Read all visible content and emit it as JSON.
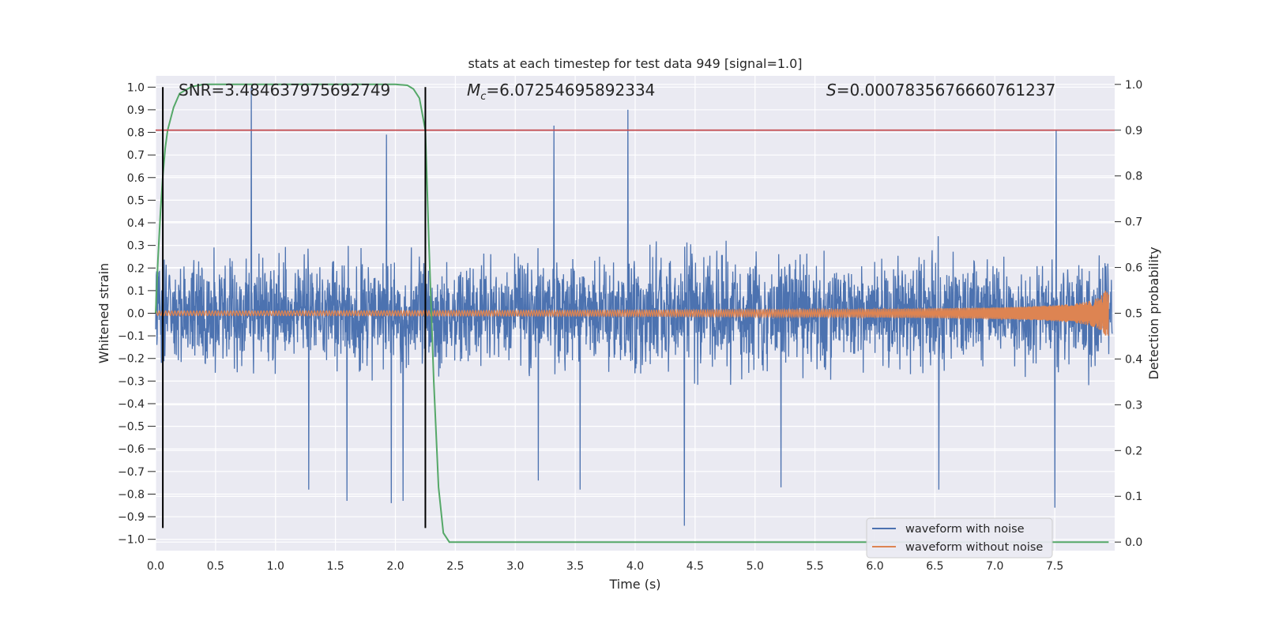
{
  "chart_data": {
    "type": "line",
    "title": "stats at each timestep for test data 949 [signal=1.0]",
    "xlabel": "Time (s)",
    "ylabel": "Whitened strain",
    "y2label": "Detection probability",
    "xlim": [
      0.0,
      8.0
    ],
    "ylim": [
      -1.05,
      1.05
    ],
    "y2lim": [
      -0.0187,
      1.0187
    ],
    "xticks": [
      0.0,
      0.5,
      1.0,
      1.5,
      2.0,
      2.5,
      3.0,
      3.5,
      4.0,
      4.5,
      5.0,
      5.5,
      6.0,
      6.5,
      7.0,
      7.5
    ],
    "xtick_labels": [
      "0.0",
      "0.5",
      "1.0",
      "1.5",
      "2.0",
      "2.5",
      "3.0",
      "3.5",
      "4.0",
      "4.5",
      "5.0",
      "5.5",
      "6.0",
      "6.5",
      "7.0",
      "7.5"
    ],
    "yticks": [
      1.0,
      0.9,
      0.8,
      0.7,
      0.6,
      0.5,
      0.4,
      0.3,
      0.2,
      0.1,
      0.0,
      -0.1,
      -0.2,
      -0.3,
      -0.4,
      -0.5,
      -0.6,
      -0.7,
      -0.8,
      -0.9,
      -1.0
    ],
    "ytick_labels": [
      "1.0",
      "0.9",
      "0.8",
      "0.7",
      "0.6",
      "0.5",
      "0.4",
      "0.3",
      "0.2",
      "0.1",
      "0.0",
      "−0.1",
      "−0.2",
      "−0.3",
      "−0.4",
      "−0.5",
      "−0.6",
      "−0.7",
      "−0.8",
      "−0.9",
      "−1.0"
    ],
    "y2ticks": [
      1.0,
      0.9,
      0.8,
      0.7,
      0.6,
      0.5,
      0.4,
      0.3,
      0.2,
      0.1,
      0.0
    ],
    "y2tick_labels": [
      "1.0",
      "0.9",
      "0.8",
      "0.7",
      "0.6",
      "0.5",
      "0.4",
      "0.3",
      "0.2",
      "0.1",
      "0.0"
    ],
    "annotations": {
      "snr": "SNR=3.484637975692749",
      "mc_symbol": "M",
      "mc_sub": "c",
      "mc_value": "=6.07254695892334",
      "s_symbol": "S",
      "s_value": "=0.0007835676660761237"
    },
    "series": [
      {
        "name": "waveform with noise",
        "color": "#4c72b0",
        "axis": "left",
        "noise_sigma": 0.2,
        "spikes": [
          [
            0.8,
            1.0
          ],
          [
            1.93,
            0.79
          ],
          [
            3.33,
            0.83
          ],
          [
            3.95,
            0.9
          ],
          [
            7.53,
            0.81
          ],
          [
            4.42,
            -0.94
          ],
          [
            1.28,
            -0.78
          ],
          [
            1.6,
            -0.83
          ],
          [
            1.97,
            -0.84
          ],
          [
            2.07,
            -0.83
          ],
          [
            7.52,
            -0.86
          ],
          [
            6.55,
            -0.78
          ],
          [
            5.23,
            -0.77
          ],
          [
            3.2,
            -0.74
          ],
          [
            3.55,
            -0.78
          ]
        ]
      },
      {
        "name": "waveform without noise",
        "color": "#dd8452",
        "axis": "left",
        "x_range": [
          0.0,
          7.95
        ],
        "base_amplitude": 0.01,
        "peak_amplitude": 0.1
      },
      {
        "name": "detection probability",
        "color": "#55a868",
        "axis": "right",
        "x": [
          0.0,
          0.02,
          0.04,
          0.06,
          0.08,
          0.1,
          0.12,
          0.15,
          0.2,
          0.3,
          0.4,
          0.5,
          1.0,
          1.5,
          2.0,
          2.1,
          2.15,
          2.2,
          2.25,
          2.28,
          2.32,
          2.36,
          2.4,
          2.45,
          2.5,
          3.0,
          4.0,
          5.0,
          6.0,
          7.0,
          7.95
        ],
        "y": [
          0.5,
          0.62,
          0.72,
          0.8,
          0.86,
          0.9,
          0.92,
          0.95,
          0.98,
          0.995,
          1.0,
          1.0,
          1.0,
          1.0,
          1.0,
          0.998,
          0.99,
          0.97,
          0.9,
          0.65,
          0.35,
          0.12,
          0.02,
          0.0,
          0.0,
          0.0,
          0.0,
          0.0,
          0.0,
          0.0,
          0.0
        ]
      }
    ],
    "threshold": {
      "value": 0.9,
      "axis": "right",
      "color": "#c44e52"
    },
    "vertical_lines": [
      {
        "x": 0.06,
        "color": "#000000"
      },
      {
        "x": 2.25,
        "color": "#000000"
      }
    ],
    "legend": {
      "placement": "lower-right",
      "entries": [
        "waveform with noise",
        "waveform without noise"
      ]
    },
    "grid": true,
    "axes_facecolor": "#eaeaf2",
    "grid_color": "#ffffff"
  }
}
